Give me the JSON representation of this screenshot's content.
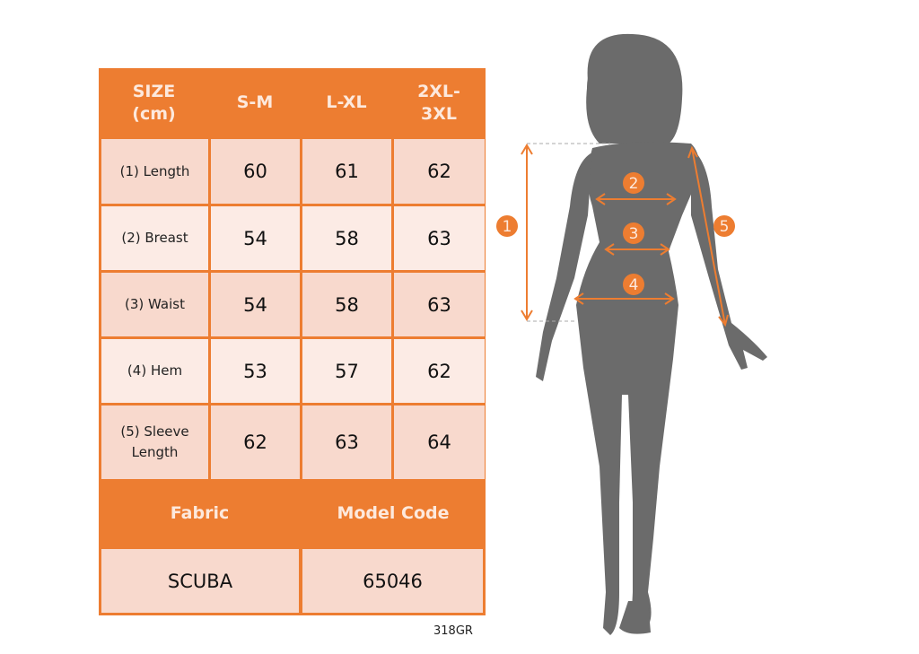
{
  "table": {
    "header": [
      "SIZE\n(cm)",
      "S-M",
      "L-XL",
      "2XL-\n3XL"
    ],
    "rows": [
      {
        "label": "(1) Length",
        "values": [
          "60",
          "61",
          "62"
        ]
      },
      {
        "label": "(2) Breast",
        "values": [
          "54",
          "58",
          "63"
        ]
      },
      {
        "label": "(3) Waist",
        "values": [
          "54",
          "58",
          "63"
        ]
      },
      {
        "label": "(4) Hem",
        "values": [
          "53",
          "57",
          "62"
        ]
      },
      {
        "label": "(5) Sleeve\nLength",
        "values": [
          "62",
          "63",
          "64"
        ]
      }
    ],
    "footer_header": [
      "Fabric",
      "Model Code"
    ],
    "footer_values": [
      "SCUBA",
      "65046"
    ]
  },
  "product_code": "318GR",
  "figure": {
    "markers": [
      "1",
      "2",
      "3",
      "4",
      "5"
    ]
  },
  "colors": {
    "accent": "#ed7d31",
    "row_dark": "#f8d9cd",
    "row_light": "#fcebe5",
    "silhouette": "#6b6b6b"
  }
}
